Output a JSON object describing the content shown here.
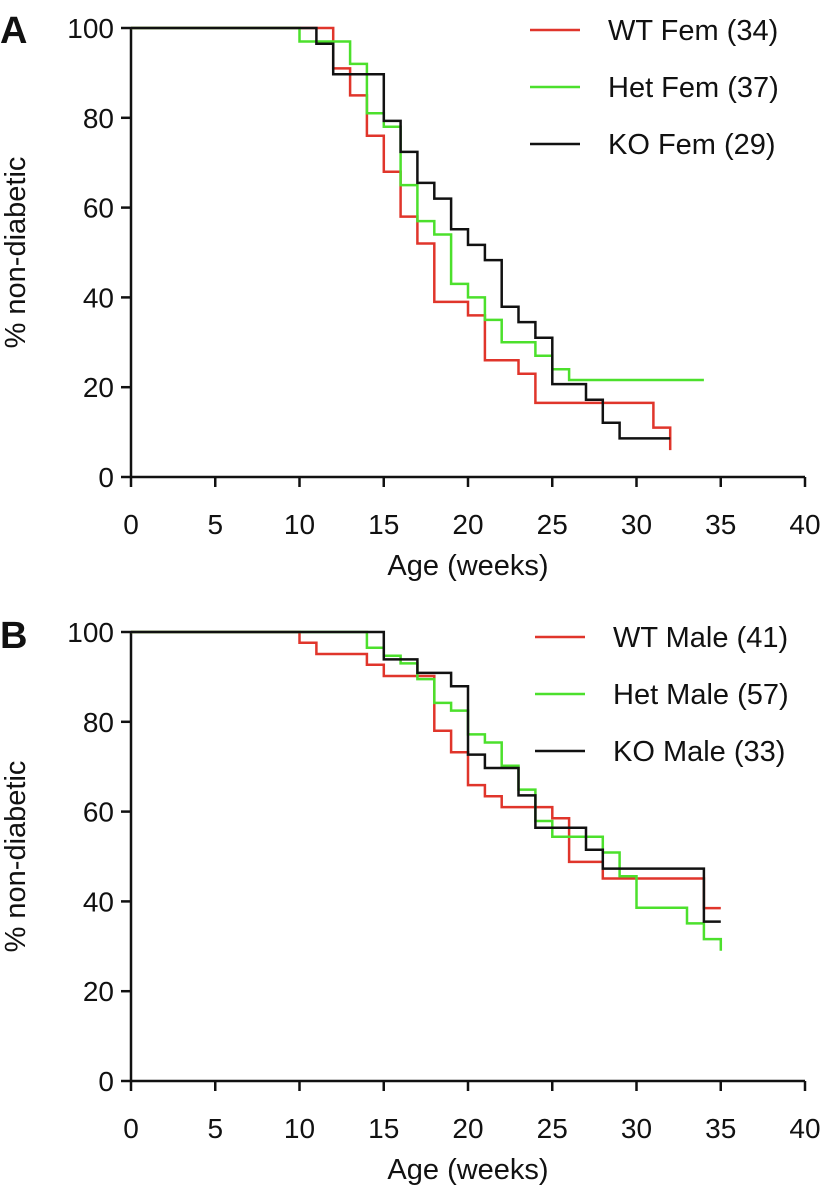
{
  "chart_data": [
    {
      "type": "line",
      "step": true,
      "panel_label": "A",
      "xlabel": "Age (weeks)",
      "ylabel": "% non-diabetic",
      "xlim": [
        0,
        40
      ],
      "ylim": [
        0,
        100
      ],
      "xticks": [
        "0",
        "5",
        "10",
        "15",
        "20",
        "25",
        "30",
        "35",
        "40"
      ],
      "yticks": [
        "0",
        "20",
        "40",
        "60",
        "80",
        "100"
      ],
      "legend_position": "top-right",
      "series": [
        {
          "name": "WT Fem (34)",
          "color": "#e0352b",
          "x": [
            0,
            12,
            13,
            14,
            15,
            16,
            17,
            18,
            20,
            21,
            23,
            24,
            26,
            31,
            32
          ],
          "y": [
            100,
            91,
            85,
            76,
            68,
            58,
            52,
            39,
            36,
            26,
            23,
            16.5,
            16.5,
            11,
            6
          ]
        },
        {
          "name": "Het Fem (37)",
          "color": "#4ce02c",
          "x": [
            0,
            10,
            12,
            13,
            14,
            15,
            16,
            17,
            18,
            19,
            20,
            21,
            22,
            24,
            25,
            26,
            34
          ],
          "y": [
            100,
            97,
            97,
            92,
            81,
            78,
            65,
            57,
            54,
            43,
            40,
            35,
            30,
            27,
            24,
            21.6,
            21.6
          ]
        },
        {
          "name": "KO Fem (29)",
          "color": "#111111",
          "x": [
            0,
            11,
            12,
            15,
            16,
            17,
            18,
            19,
            20,
            21,
            22,
            23,
            24,
            25,
            27,
            28,
            29,
            32
          ],
          "y": [
            100,
            96.5,
            89.7,
            79.3,
            72.4,
            65.5,
            62,
            55.2,
            51.7,
            48.3,
            37.9,
            34.5,
            31,
            20.7,
            17.2,
            12.1,
            8.6,
            8.6
          ]
        }
      ]
    },
    {
      "type": "line",
      "step": true,
      "panel_label": "B",
      "xlabel": "Age (weeks)",
      "ylabel": "% non-diabetic",
      "xlim": [
        0,
        40
      ],
      "ylim": [
        0,
        100
      ],
      "xticks": [
        "0",
        "5",
        "10",
        "15",
        "20",
        "25",
        "30",
        "35",
        "40"
      ],
      "yticks": [
        "0",
        "20",
        "40",
        "60",
        "80",
        "100"
      ],
      "legend_position": "top-right",
      "series": [
        {
          "name": "WT Male (41)",
          "color": "#e0352b",
          "x": [
            0,
            10,
            11,
            14,
            15,
            18,
            19,
            20,
            21,
            22,
            24,
            25,
            26,
            28,
            30,
            34,
            35
          ],
          "y": [
            100,
            97.6,
            95.1,
            92.7,
            90.2,
            78,
            73.2,
            65.9,
            63.4,
            61,
            61,
            58.5,
            48.8,
            45.1,
            45.1,
            38.5,
            38.5
          ]
        },
        {
          "name": "Het Male (57)",
          "color": "#4ce02c",
          "x": [
            0,
            14,
            15,
            16,
            17,
            18,
            19,
            20,
            21,
            22,
            23,
            24,
            25,
            27,
            28,
            29,
            30,
            33,
            34,
            35
          ],
          "y": [
            100,
            96.5,
            94.7,
            93,
            89.5,
            84.2,
            82.5,
            77.2,
            75.4,
            70.2,
            64.9,
            57.9,
            54.4,
            54.4,
            50.9,
            45.6,
            38.6,
            35.1,
            31.6,
            29
          ]
        },
        {
          "name": "KO Male (33)",
          "color": "#111111",
          "x": [
            0,
            15,
            17,
            19,
            20,
            21,
            23,
            24,
            26,
            27,
            28,
            34,
            35
          ],
          "y": [
            100,
            93.9,
            90.9,
            87.9,
            72.7,
            69.7,
            63.6,
            56.4,
            56.4,
            51.5,
            47.3,
            35.5,
            35.5
          ]
        }
      ]
    }
  ]
}
